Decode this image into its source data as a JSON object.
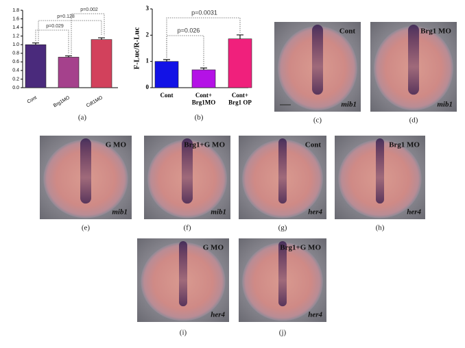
{
  "chart_data": [
    {
      "type": "bar",
      "caption": "(a)",
      "categories": [
        "Cont",
        "Brg1MO",
        "Cdt1MO"
      ],
      "values": [
        1.0,
        0.71,
        1.12
      ],
      "errors": [
        0.04,
        0.03,
        0.04
      ],
      "colors": [
        "#4a2a7c",
        "#a5418c",
        "#d2415c"
      ],
      "ylim": [
        0,
        1.8
      ],
      "yticks": [
        {
          "value": 0,
          "label": "0.0"
        },
        0.2,
        0.4,
        0.6,
        0.8,
        {
          "value": 1,
          "label": "1.0"
        },
        1.2,
        1.4,
        1.6,
        1.8
      ],
      "annotations": [
        "p=0.029",
        "p=0.128",
        "p=0.002"
      ]
    },
    {
      "type": "bar",
      "caption": "(b)",
      "ylabel": "F-Luc/R-Luc",
      "categories": [
        "Cont",
        "Cont+\nBrg1MO",
        "Cont+\nBrg1 OP"
      ],
      "values": [
        1.0,
        0.68,
        1.86
      ],
      "errors": [
        0.07,
        0.07,
        0.15
      ],
      "colors": [
        "#1212e6",
        "#b412e6",
        "#f0207c"
      ],
      "ylim": [
        0,
        3
      ],
      "yticks": [
        0,
        1,
        2,
        3
      ],
      "annotations": [
        "p=0.026",
        "p=0.0031"
      ]
    }
  ],
  "panels": [
    {
      "label": "Cont",
      "gene": "mib1",
      "caption": "(c)"
    },
    {
      "label": "Brg1 MO",
      "gene": "mib1",
      "caption": "(d)"
    },
    {
      "label": "G MO",
      "gene": "mib1",
      "caption": "(e)"
    },
    {
      "label": "Brg1+G MO",
      "gene": "mib1",
      "caption": "(f)"
    },
    {
      "label": "Cont",
      "gene": "her4",
      "caption": "(g)"
    },
    {
      "label": "Brg1 MO",
      "gene": "her4",
      "caption": "(h)"
    },
    {
      "label": "G MO",
      "gene": "her4",
      "caption": "(i)"
    },
    {
      "label": "Brg1+G MO",
      "gene": "her4",
      "caption": "(j)"
    }
  ]
}
